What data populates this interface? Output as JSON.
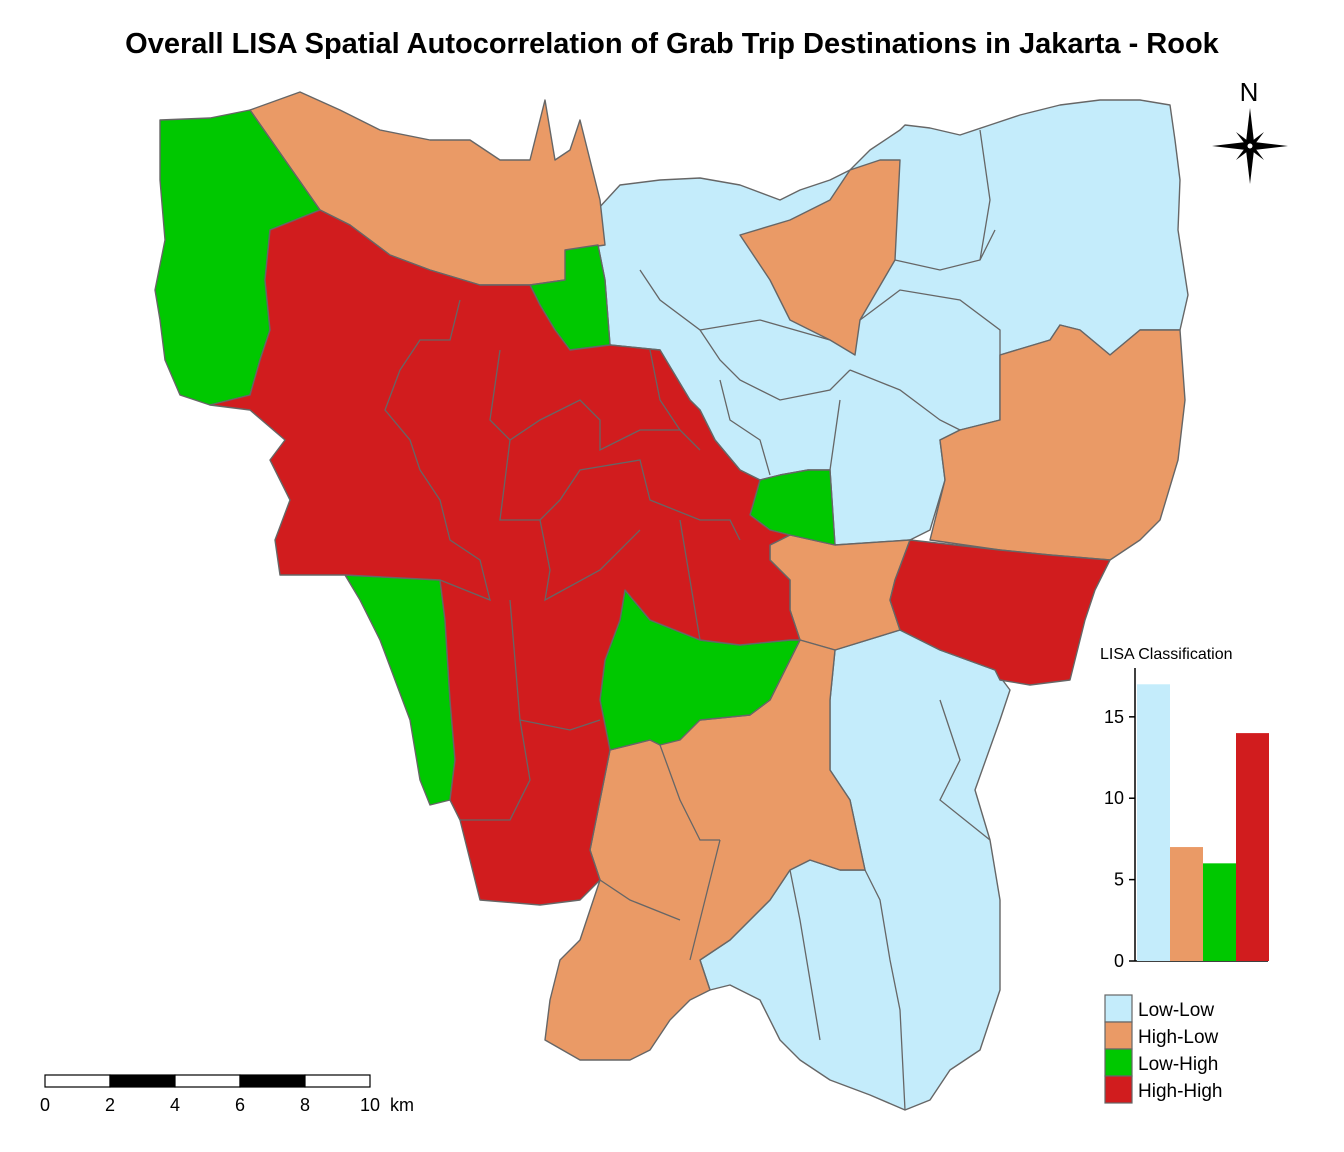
{
  "title": "Overall LISA Spatial Autocorrelation of Grab Trip Destinations in Jakarta - Rook",
  "north_arrow": {
    "label": "N",
    "icon": "compass-rose-icon"
  },
  "colors": {
    "Low-Low": "#c4ecfb",
    "High-Low": "#ea9a66",
    "Low-High": "#00c800",
    "High-High": "#d11c1e",
    "border": "#666666"
  },
  "legend": {
    "items": [
      "Low-Low",
      "High-Low",
      "Low-High",
      "High-High"
    ]
  },
  "chart_data": {
    "type": "bar",
    "title": "LISA Classification",
    "categories": [
      "Low-Low",
      "High-Low",
      "Low-High",
      "High-High"
    ],
    "values": [
      17,
      7,
      6,
      14
    ],
    "yticks": [
      "0",
      "5",
      "10",
      "15"
    ],
    "ylim": [
      0,
      18
    ]
  },
  "scale_bar": {
    "ticks": [
      "0",
      "2",
      "4",
      "6",
      "8",
      "10"
    ],
    "unit": "km"
  }
}
